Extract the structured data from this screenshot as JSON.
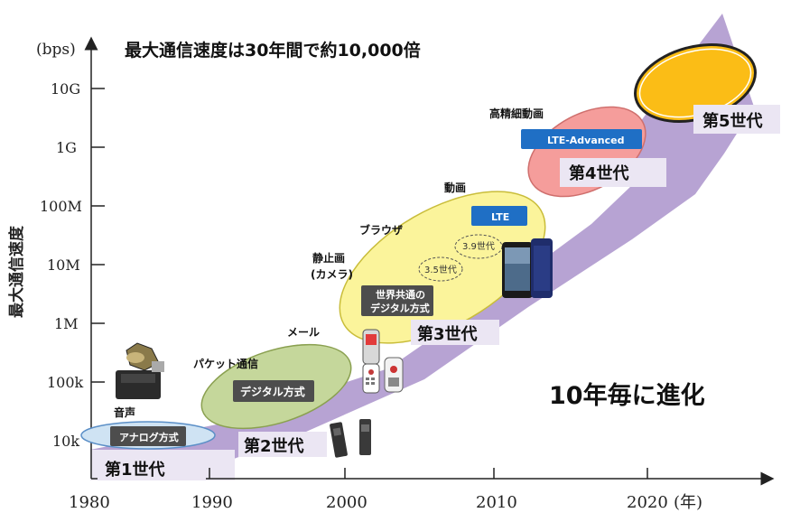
{
  "headline": "最大通信速度は30年間で約10,000倍",
  "y_unit": "(bps)",
  "y_axis_title": "最大通信速度",
  "y_ticks": [
    "10G",
    "1G",
    "100M",
    "10M",
    "1M",
    "100k",
    "10k"
  ],
  "x_ticks": [
    "1980",
    "1990",
    "2000",
    "2010",
    "2020"
  ],
  "x_unit": "(年)",
  "tagline": "10年毎に進化",
  "generations": {
    "g1": "第1世代",
    "g2": "第2世代",
    "g3": "第3世代",
    "g4": "第4世代",
    "g5": "第5世代"
  },
  "methods": {
    "analog": "アナログ方式",
    "digital": "デジタル方式",
    "global_digital_1": "世界共通の",
    "global_digital_2": "デジタル方式",
    "lte": "LTE",
    "lte_advanced": "LTE-Advanced",
    "g35": "3.5世代",
    "g39": "3.9世代"
  },
  "uses": {
    "voice": "音声",
    "packet": "パケット通信",
    "mail": "メール",
    "still_1": "静止画",
    "still_2": "(カメラ)",
    "browser": "ブラウザ",
    "video": "動画",
    "hd_video": "高精細動画"
  },
  "colors": {
    "arrow": "#b7a3d3",
    "band": "#ebe6f3",
    "gen1": "#cfe3f3",
    "gen2": "#c5d79b",
    "gen3": "#fbf49b",
    "gen4": "#f59d9b",
    "gen5": "#fbbd16",
    "badge_dark": "#4d4d4d",
    "badge_blue": "#1f6fc5"
  }
}
